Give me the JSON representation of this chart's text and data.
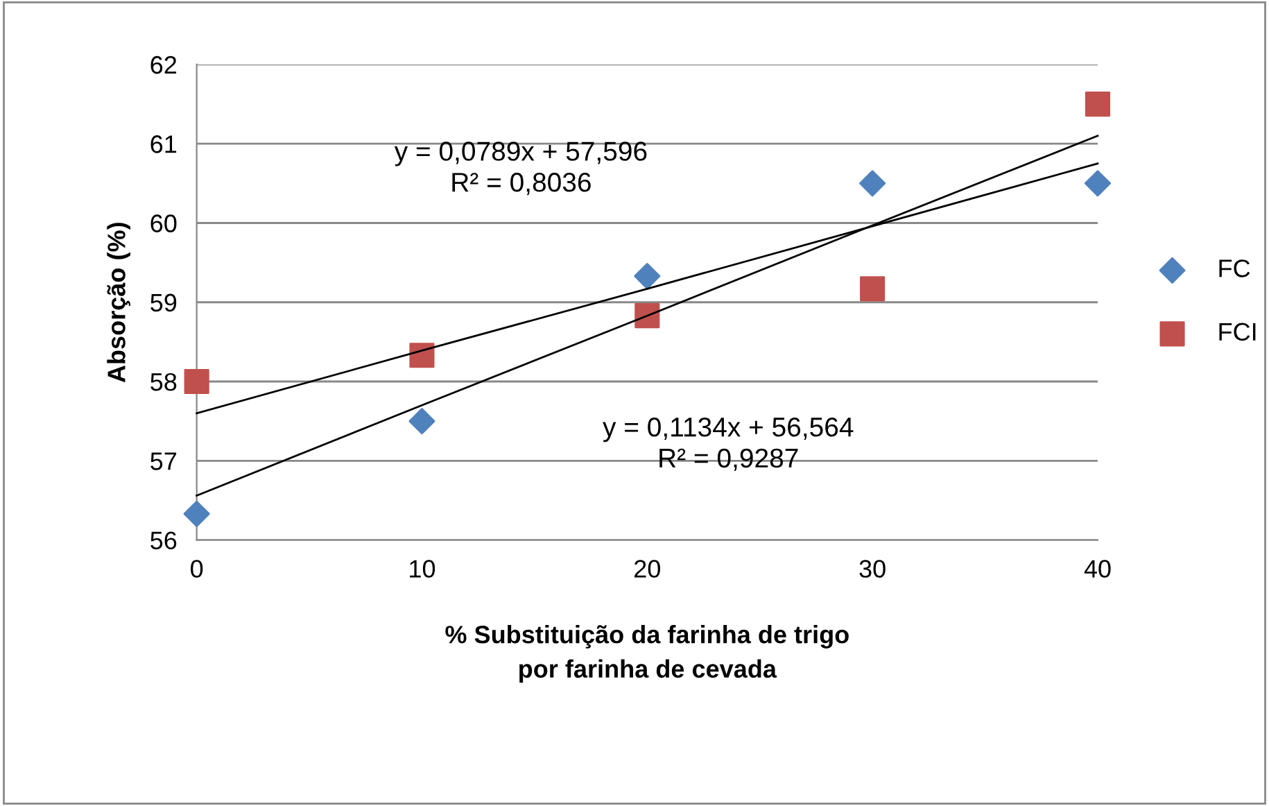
{
  "chart_data": {
    "type": "scatter",
    "xlabel": "% Substituição da farinha de trigo\npor farinha de cevada",
    "ylabel": "Absorção (%)",
    "x": [
      0,
      10,
      20,
      30,
      40
    ],
    "series": [
      {
        "name": "FC",
        "color": "#4f81bd",
        "marker": "diamond",
        "values": [
          56.33,
          57.5,
          59.33,
          60.5,
          60.5
        ]
      },
      {
        "name": "FCI",
        "color": "#c0504d",
        "marker": "square",
        "values": [
          58.0,
          58.33,
          58.83,
          59.17,
          61.5
        ]
      },
      {
        "type": "line",
        "color": "#000000",
        "marker": "none",
        "values": [
          56.56,
          57.7,
          58.83,
          59.97,
          61.1
        ]
      },
      {
        "type": "line",
        "color": "#000000",
        "marker": "none",
        "values": [
          57.6,
          58.39,
          59.17,
          59.96,
          60.75
        ]
      }
    ],
    "annotations": [
      "y = 0,0789x + 57,596\nR² = 0,8036",
      "y = 0,1134x + 56,564\nR² = 0,9287"
    ],
    "xlim": [
      0,
      40
    ],
    "xticks": [
      0,
      10,
      20,
      30,
      40
    ],
    "ylim": [
      56,
      62
    ],
    "yticks": [
      56,
      57,
      58,
      59,
      60,
      61,
      62
    ],
    "grid": "y",
    "legend": "right"
  }
}
